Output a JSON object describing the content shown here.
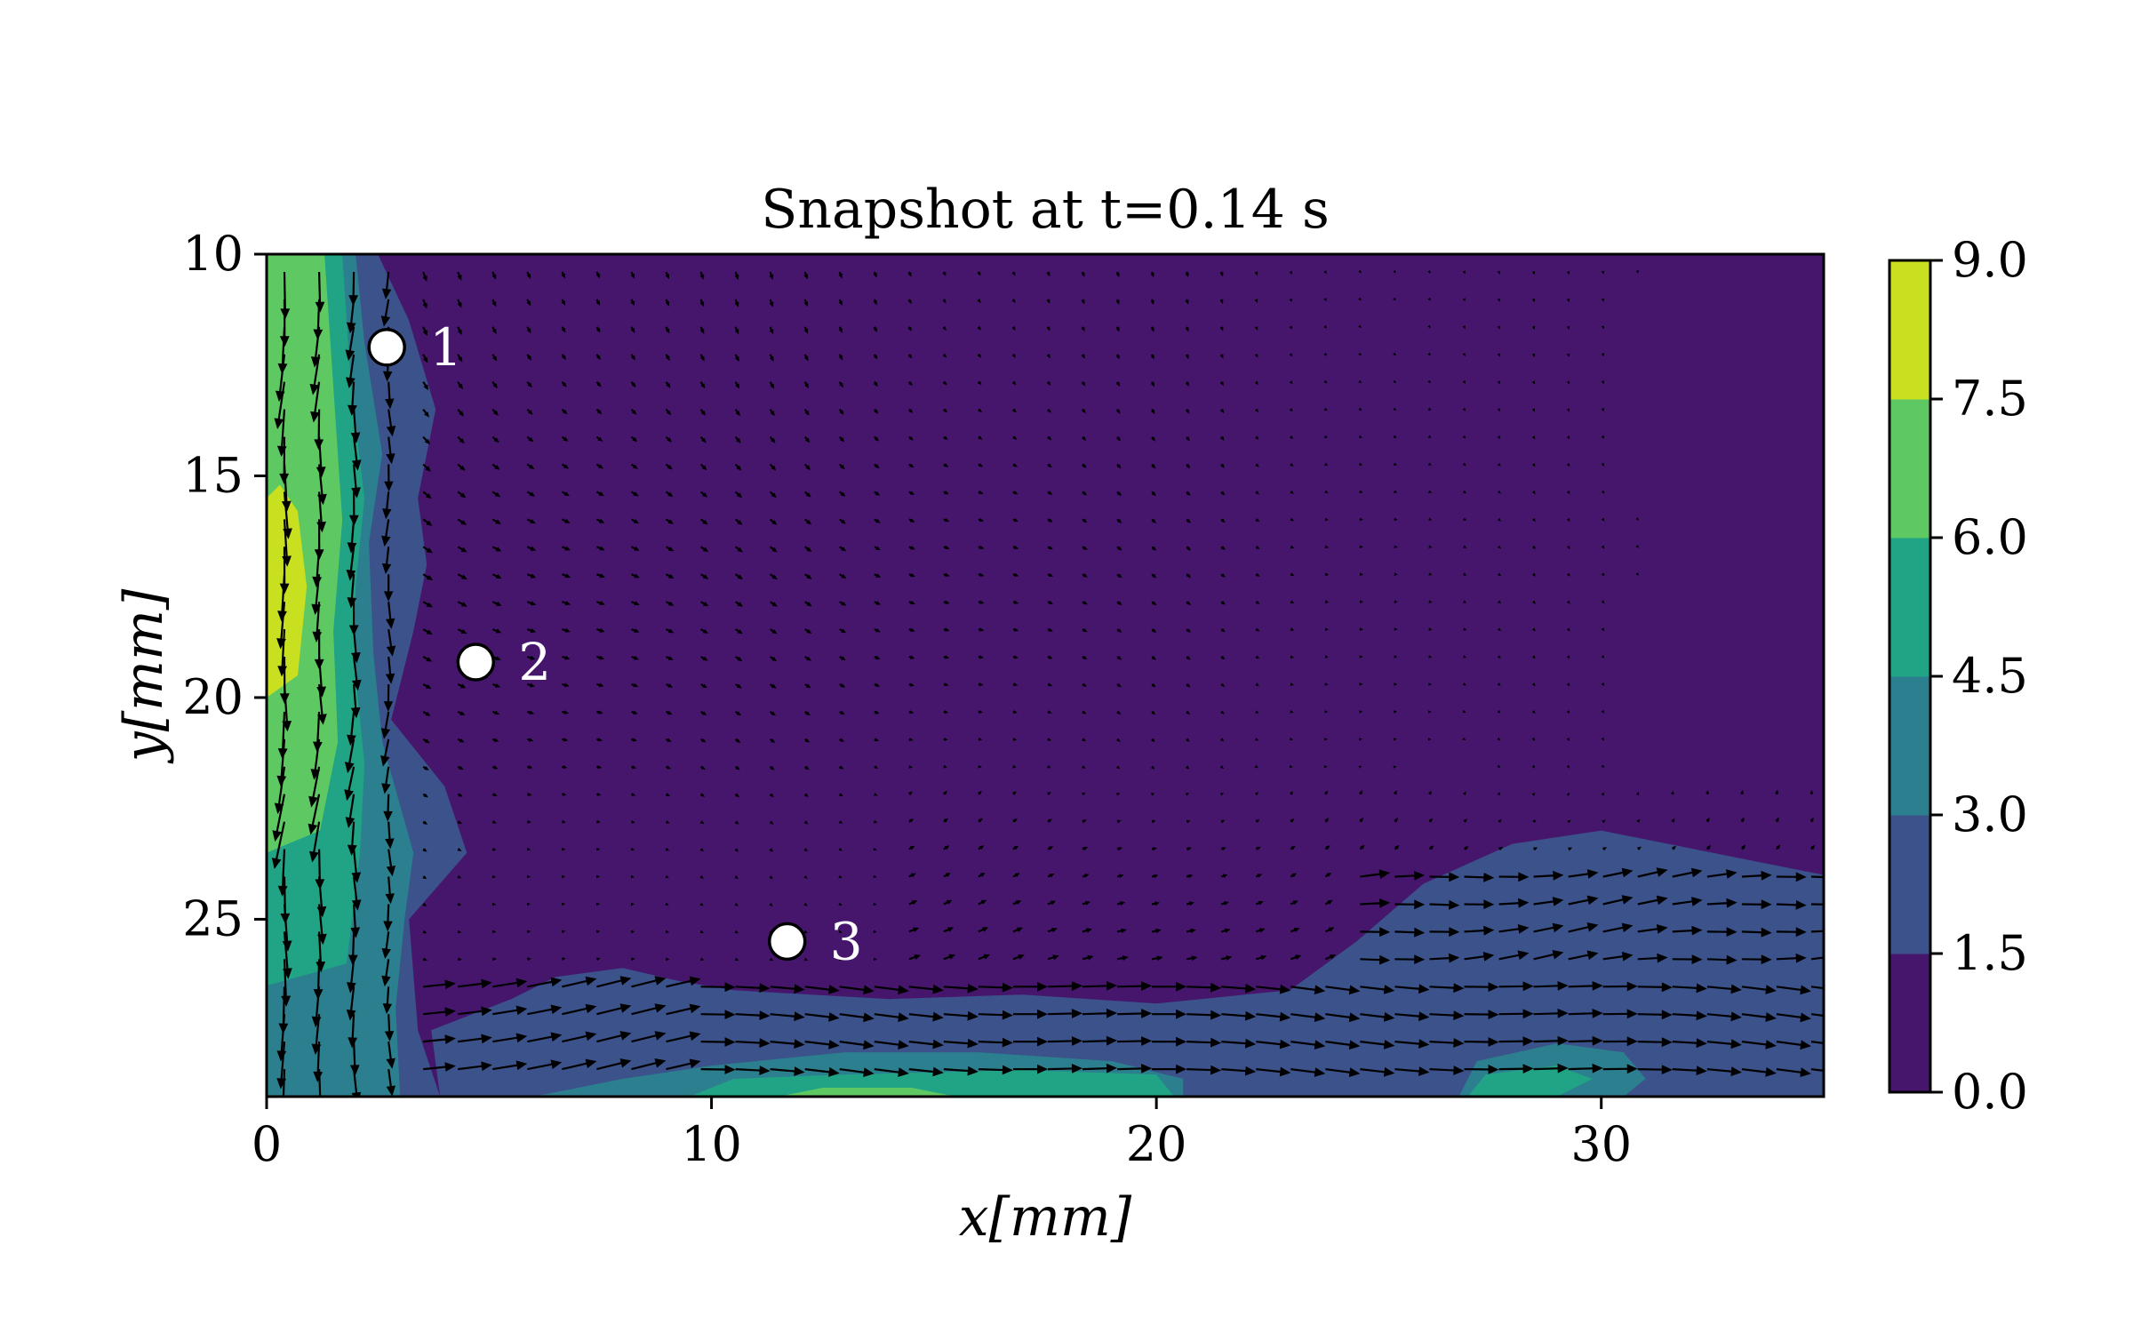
{
  "chart_data": {
    "type": "heatmap",
    "title": "Snapshot at t=0.14 s",
    "xlabel": "x[mm]",
    "ylabel": "y[mm]",
    "xlim": [
      0,
      35
    ],
    "ylim": [
      29,
      10
    ],
    "y_inverted": true,
    "x_ticks": [
      0,
      10,
      20,
      30
    ],
    "y_ticks": [
      10,
      15,
      20,
      25
    ],
    "x_tick_labels": [
      "0",
      "10",
      "20",
      "30"
    ],
    "y_tick_labels": [
      "10",
      "15",
      "20",
      "25"
    ],
    "grid": false,
    "overlay": "velocity-vector quiver",
    "colorbar": {
      "levels": [
        0.0,
        1.5,
        3.0,
        4.5,
        6.0,
        7.5,
        9.0
      ],
      "labels": [
        "0.0",
        "1.5",
        "3.0",
        "4.5",
        "6.0",
        "7.5",
        "9.0"
      ],
      "colors": [
        "#46166c",
        "#3b528b",
        "#2c7f8e",
        "#21a385",
        "#5ec962",
        "#c8e020"
      ]
    },
    "regions": [
      {
        "level_index": 1,
        "polygon": [
          [
            3.9,
            29
          ],
          [
            3.4,
            27.5
          ],
          [
            3.2,
            25
          ],
          [
            4.5,
            23.5
          ],
          [
            4.0,
            22.0
          ],
          [
            2.8,
            20.5
          ],
          [
            3.3,
            18.5
          ],
          [
            3.6,
            17.0
          ],
          [
            3.4,
            15.5
          ],
          [
            3.8,
            13.5
          ],
          [
            3.2,
            11.5
          ],
          [
            2.5,
            10
          ],
          [
            0,
            10
          ],
          [
            0,
            29
          ]
        ]
      },
      {
        "level_index": 1,
        "polygon": [
          [
            3.9,
            29
          ],
          [
            3.7,
            27.5
          ],
          [
            5.5,
            26.8
          ],
          [
            6.5,
            26.3
          ],
          [
            8.0,
            26.1
          ],
          [
            9.3,
            26.4
          ],
          [
            10.5,
            26.6
          ],
          [
            14,
            26.8
          ],
          [
            17,
            26.7
          ],
          [
            20,
            26.9
          ],
          [
            23,
            26.6
          ],
          [
            24.5,
            25.5
          ],
          [
            26,
            24.2
          ],
          [
            28,
            23.3
          ],
          [
            30,
            23.0
          ],
          [
            33,
            23.6
          ],
          [
            35,
            24.0
          ],
          [
            35,
            29
          ]
        ]
      },
      {
        "level_index": 2,
        "polygon": [
          [
            3.0,
            29
          ],
          [
            2.9,
            27
          ],
          [
            3.1,
            25
          ],
          [
            3.3,
            23.5
          ],
          [
            2.6,
            21.0
          ],
          [
            2.4,
            19.0
          ],
          [
            2.3,
            16.5
          ],
          [
            2.6,
            14.5
          ],
          [
            2.2,
            12.0
          ],
          [
            2.0,
            10
          ],
          [
            0,
            10
          ],
          [
            0,
            29
          ]
        ]
      },
      {
        "level_index": 2,
        "polygon": [
          [
            6,
            29
          ],
          [
            8,
            28.6
          ],
          [
            10,
            28.3
          ],
          [
            13,
            28.0
          ],
          [
            16,
            28.0
          ],
          [
            19,
            28.2
          ],
          [
            20.6,
            28.6
          ],
          [
            20.6,
            29
          ]
        ]
      },
      {
        "level_index": 2,
        "polygon": [
          [
            26.8,
            29
          ],
          [
            27.2,
            28.2
          ],
          [
            29,
            27.8
          ],
          [
            30.5,
            28.0
          ],
          [
            31,
            28.6
          ],
          [
            30.5,
            29
          ]
        ]
      },
      {
        "level_index": 3,
        "polygon": [
          [
            1.8,
            26
          ],
          [
            2.1,
            23.5
          ],
          [
            2.2,
            21.5
          ],
          [
            2.0,
            19.5
          ],
          [
            2.0,
            17.5
          ],
          [
            2.2,
            15.5
          ],
          [
            1.9,
            13.0
          ],
          [
            1.7,
            10
          ],
          [
            0,
            10
          ],
          [
            0,
            26.5
          ]
        ]
      },
      {
        "level_index": 3,
        "polygon": [
          [
            9.5,
            29
          ],
          [
            10.5,
            28.6
          ],
          [
            13,
            28.5
          ],
          [
            17,
            28.4
          ],
          [
            20,
            28.5
          ],
          [
            20.4,
            29
          ]
        ]
      },
      {
        "level_index": 3,
        "polygon": [
          [
            27.0,
            29
          ],
          [
            27.4,
            28.5
          ],
          [
            29.0,
            28.3
          ],
          [
            29.8,
            28.6
          ],
          [
            29.0,
            29
          ]
        ]
      },
      {
        "level_index": 4,
        "polygon": [
          [
            1.2,
            23.0
          ],
          [
            1.6,
            21.0
          ],
          [
            1.5,
            18.5
          ],
          [
            1.7,
            16.0
          ],
          [
            1.5,
            13.0
          ],
          [
            1.3,
            10
          ],
          [
            0,
            10
          ],
          [
            0,
            23.5
          ]
        ]
      },
      {
        "level_index": 4,
        "polygon": [
          [
            11.5,
            29
          ],
          [
            12.5,
            28.8
          ],
          [
            14.5,
            28.8
          ],
          [
            15.5,
            29
          ]
        ]
      },
      {
        "level_index": 5,
        "polygon": [
          [
            0.7,
            19.5
          ],
          [
            0.9,
            17.5
          ],
          [
            0.7,
            15.8
          ],
          [
            0.3,
            15.2
          ],
          [
            0,
            15.5
          ],
          [
            0,
            20.0
          ]
        ]
      }
    ],
    "markers": [
      {
        "label": "1",
        "x": 2.7,
        "y": 12.1
      },
      {
        "label": "2",
        "x": 4.7,
        "y": 19.2
      },
      {
        "label": "3",
        "x": 11.7,
        "y": 25.5
      }
    ]
  },
  "colors": {
    "background_field": "#46166c",
    "arrow": "#000000",
    "marker_fill": "#ffffff",
    "marker_edge": "#000000"
  }
}
